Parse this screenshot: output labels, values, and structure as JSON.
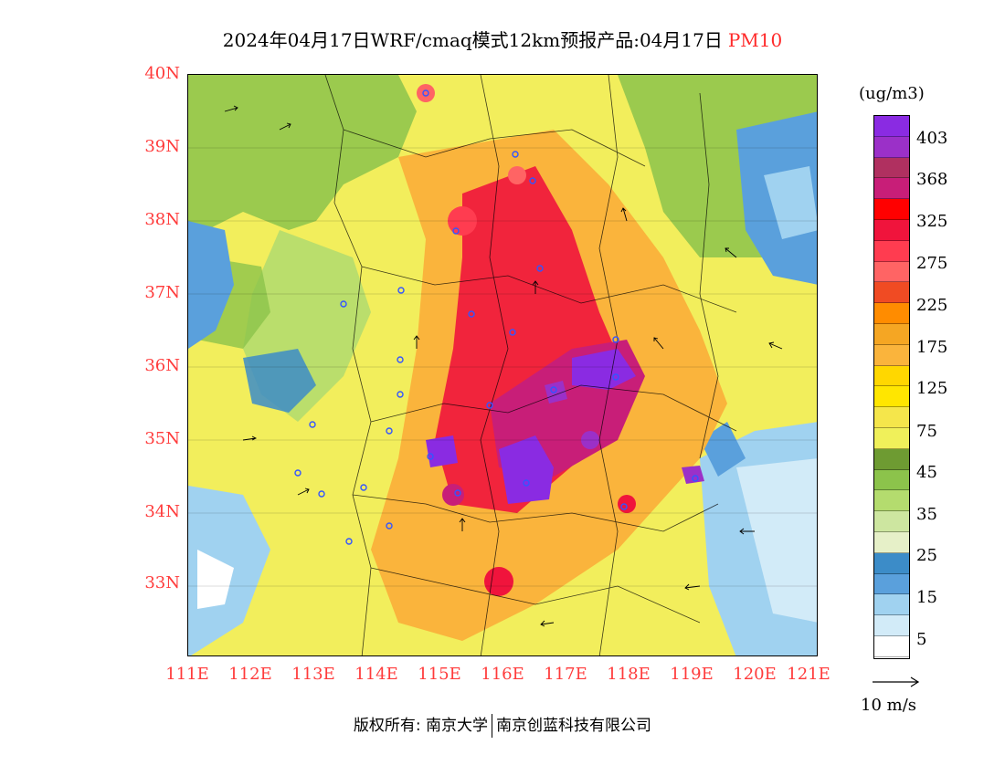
{
  "title": {
    "main": "2024年04月17日WRF/cmaq模式12km预报产品:04月17日",
    "variable": "PM10"
  },
  "latitude_labels": [
    "40N",
    "39N",
    "38N",
    "37N",
    "36N",
    "35N",
    "34N",
    "33N"
  ],
  "longitude_labels": [
    "111E",
    "112E",
    "113E",
    "114E",
    "115E",
    "116E",
    "117E",
    "118E",
    "119E",
    "120E",
    "121E"
  ],
  "colorbar": {
    "unit": "(ug/m3)",
    "labels": [
      "403",
      "368",
      "325",
      "275",
      "225",
      "175",
      "125",
      "75",
      "45",
      "35",
      "25",
      "15",
      "5"
    ],
    "colors_top_to_bottom": [
      "#8a2be2",
      "#9b30c8",
      "#b03060",
      "#c81e78",
      "#ff0000",
      "#f0143c",
      "#ff3c50",
      "#ff6464",
      "#f04b23",
      "#ff8c00",
      "#f5a623",
      "#fab43c",
      "#ffd700",
      "#ffe600",
      "#f5e64b",
      "#f0f05a",
      "#6e9b32",
      "#8cc34b",
      "#b4dc6e",
      "#cde6a0",
      "#e6f0c8",
      "#3c8cc8",
      "#5aa0dc",
      "#a0d2f0",
      "#d2ebf8",
      "#ffffff"
    ]
  },
  "wind_reference": "10 m/s",
  "footer": {
    "left": "版权所有: 南京大学",
    "right": "南京创蓝科技有限公司"
  },
  "colors": {
    "axis_label": "#ff3b3b",
    "title_variable": "#ff2a2a"
  }
}
